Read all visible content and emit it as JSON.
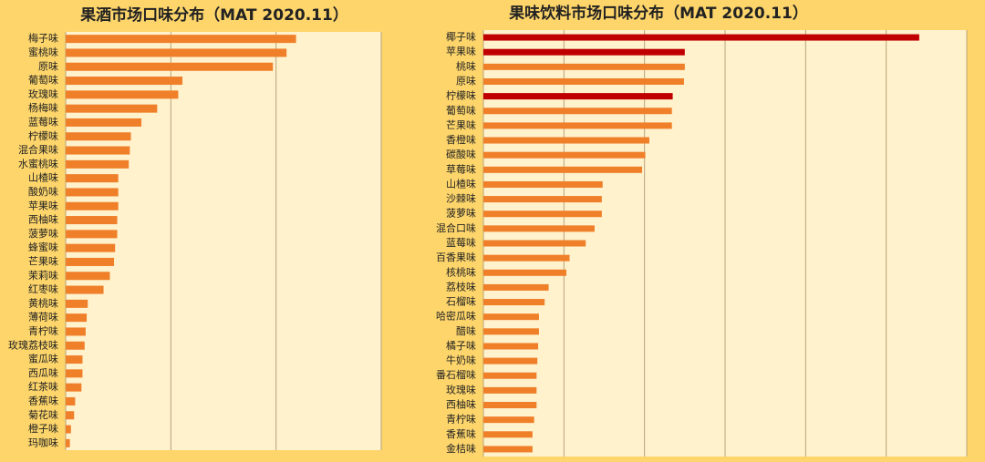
{
  "chart_data": [
    {
      "type": "hbar",
      "title": "果酒市场口味分布（MAT 2020.11）",
      "color": "#f07f2a",
      "grid": true,
      "xlim": [
        0,
        3
      ],
      "xticks": [
        0,
        1,
        2,
        3
      ],
      "categories": [
        "梅子味",
        "蜜桃味",
        "原味",
        "葡萄味",
        "玫瑰味",
        "杨梅味",
        "蓝莓味",
        "柠檬味",
        "混合果味",
        "水蜜桃味",
        "山楂味",
        "酸奶味",
        "苹果味",
        "西柚味",
        "菠萝味",
        "蜂蜜味",
        "芒果味",
        "茉莉味",
        "红枣味",
        "黄桃味",
        "薄荷味",
        "青柠味",
        "玫瑰荔枝味",
        "蜜瓜味",
        "西瓜味",
        "红茶味",
        "香蕉味",
        "菊花味",
        "橙子味",
        "玛咖味"
      ],
      "values": [
        2.19,
        2.1,
        1.97,
        1.11,
        1.07,
        0.87,
        0.72,
        0.62,
        0.61,
        0.6,
        0.5,
        0.5,
        0.5,
        0.49,
        0.49,
        0.47,
        0.46,
        0.42,
        0.36,
        0.21,
        0.2,
        0.19,
        0.18,
        0.16,
        0.16,
        0.15,
        0.09,
        0.08,
        0.05,
        0.04
      ]
    },
    {
      "type": "hbar",
      "title": "果味饮料市场口味分布（MAT 2020.11）",
      "grid": true,
      "xlim": [
        0,
        6
      ],
      "xticks": [
        0,
        1,
        2,
        3,
        4,
        5,
        6
      ],
      "categories": [
        "椰子味",
        "苹果味",
        "桃味",
        "原味",
        "柠檬味",
        "葡萄味",
        "芒果味",
        "香橙味",
        "碳酸味",
        "草莓味",
        "山楂味",
        "沙棘味",
        "菠萝味",
        "混合口味",
        "蓝莓味",
        "百香果味",
        "核桃味",
        "荔枝味",
        "石榴味",
        "哈密瓜味",
        "醋味",
        "橘子味",
        "牛奶味",
        "番石榴味",
        "玫瑰味",
        "西柚味",
        "青柠味",
        "香蕉味",
        "金桔味"
      ],
      "values": [
        5.41,
        2.5,
        2.5,
        2.49,
        2.35,
        2.34,
        2.34,
        2.06,
        2.01,
        1.97,
        1.48,
        1.47,
        1.47,
        1.38,
        1.27,
        1.07,
        1.03,
        0.81,
        0.76,
        0.69,
        0.69,
        0.68,
        0.67,
        0.66,
        0.66,
        0.66,
        0.63,
        0.61,
        0.61
      ],
      "colors": [
        "#c00000",
        "#c00000",
        "#f07f2a",
        "#f07f2a",
        "#c00000",
        "#f07f2a",
        "#f07f2a",
        "#f07f2a",
        "#f07f2a",
        "#f07f2a",
        "#f07f2a",
        "#f07f2a",
        "#f07f2a",
        "#f07f2a",
        "#f07f2a",
        "#f07f2a",
        "#f07f2a",
        "#f07f2a",
        "#f07f2a",
        "#f07f2a",
        "#f07f2a",
        "#f07f2a",
        "#f07f2a",
        "#f07f2a",
        "#f07f2a",
        "#f07f2a",
        "#f07f2a",
        "#f07f2a",
        "#f07f2a"
      ]
    }
  ]
}
